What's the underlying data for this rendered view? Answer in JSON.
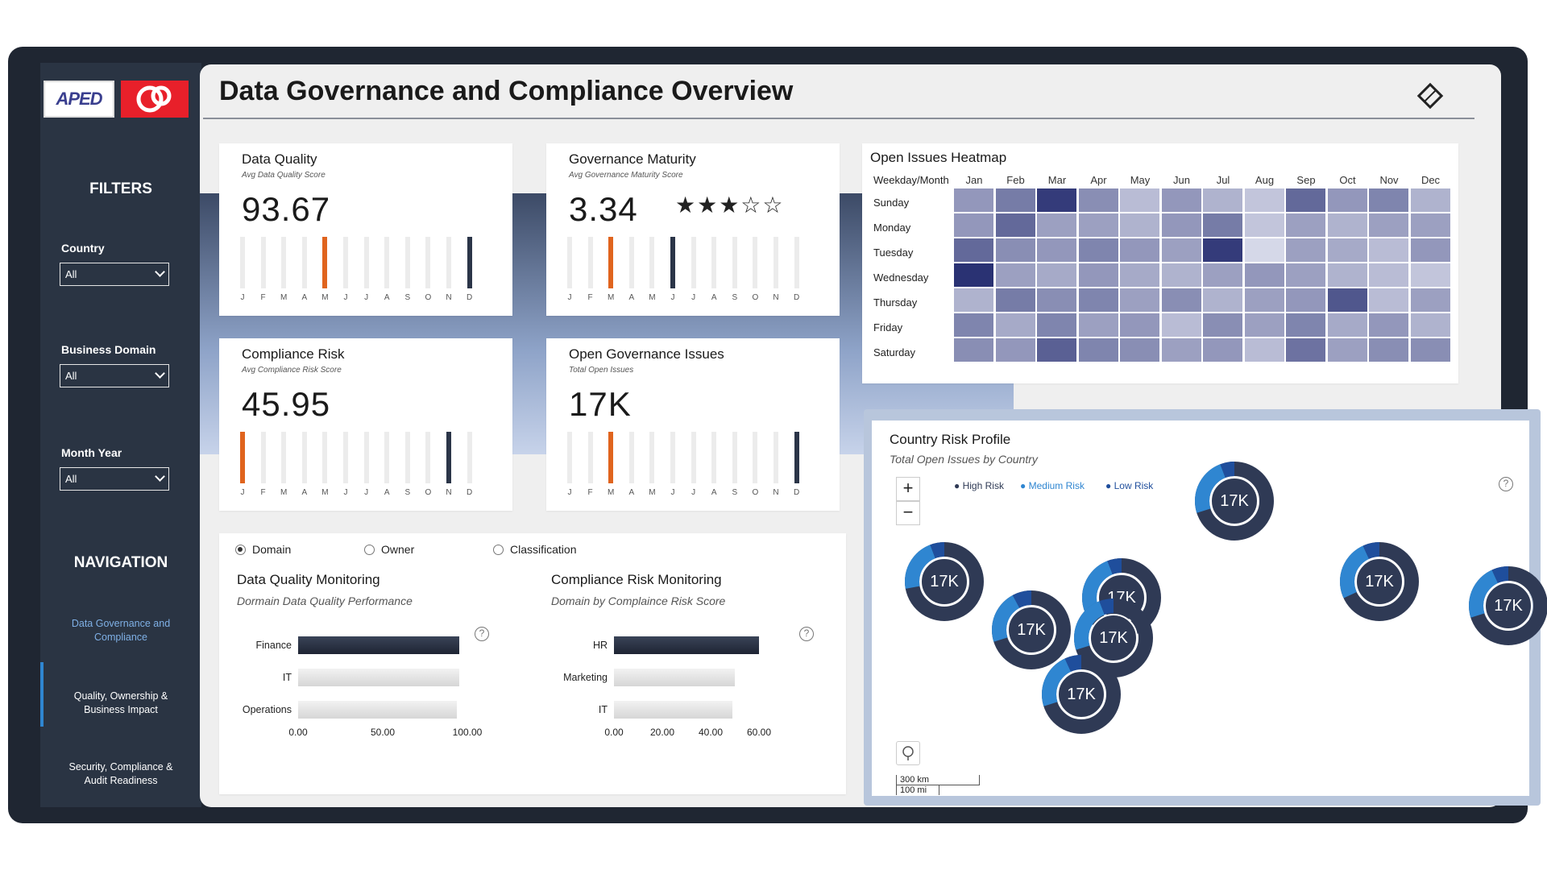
{
  "app": {
    "title": "Data Governance and Compliance Overview",
    "logo_left_text": "APED"
  },
  "sidebar": {
    "filters_heading": "FILTERS",
    "filters": [
      {
        "label": "Country",
        "value": "All"
      },
      {
        "label": "Business Domain",
        "value": "All"
      },
      {
        "label": "Month Year",
        "value": "All"
      }
    ],
    "navigation_heading": "NAVIGATION",
    "nav_items": [
      {
        "label_line1": "Data Governance and",
        "label_line2": "Compliance",
        "active": true
      },
      {
        "label_line1": "Quality, Ownership &",
        "label_line2": "Business Impact",
        "active": false
      },
      {
        "label_line1": "Security, Compliance &",
        "label_line2": "Audit Readiness",
        "active": false
      }
    ]
  },
  "colors": {
    "accent_orange": "#e0641e",
    "accent_navy": "#2b3548",
    "slot_gray": "#ececec",
    "high_risk": "#2f3a55",
    "medium_risk": "#2f86d1",
    "low_risk": "#1f4e9c"
  },
  "kpis": [
    {
      "title": "Data Quality",
      "subtitle": "Avg Data Quality Score",
      "value": "93.67",
      "months": [
        "J",
        "F",
        "M",
        "A",
        "M",
        "J",
        "J",
        "A",
        "S",
        "O",
        "N",
        "D"
      ],
      "highlights": {
        "orange": 4,
        "navy": 11
      }
    },
    {
      "title": "Governance Maturity",
      "subtitle": "Avg Governance Maturity Score",
      "value": "3.34",
      "stars": "★★★☆☆",
      "months": [
        "J",
        "F",
        "M",
        "A",
        "M",
        "J",
        "J",
        "A",
        "S",
        "O",
        "N",
        "D"
      ],
      "highlights": {
        "orange": 2,
        "navy": 5
      }
    },
    {
      "title": "Compliance Risk",
      "subtitle": "Avg Compliance Risk Score",
      "value": "45.95",
      "months": [
        "J",
        "F",
        "M",
        "A",
        "M",
        "J",
        "J",
        "A",
        "S",
        "O",
        "N",
        "D"
      ],
      "highlights": {
        "orange": 0,
        "navy": 10
      }
    },
    {
      "title": "Open Governance Issues",
      "subtitle": "Total Open Issues",
      "value": "17K",
      "months": [
        "J",
        "F",
        "M",
        "A",
        "M",
        "J",
        "J",
        "A",
        "S",
        "O",
        "N",
        "D"
      ],
      "highlights": {
        "orange": 2,
        "navy": 11
      }
    }
  ],
  "heatmap": {
    "title": "Open Issues Heatmap",
    "corner_label": "Weekday/Month",
    "months": [
      "Jan",
      "Feb",
      "Mar",
      "Apr",
      "May",
      "Jun",
      "Jul",
      "Aug",
      "Sep",
      "Oct",
      "Nov",
      "Dec"
    ],
    "weekdays": [
      "Sunday",
      "Monday",
      "Tuesday",
      "Wednesday",
      "Thursday",
      "Friday",
      "Saturday"
    ],
    "intensity": [
      [
        0.45,
        0.6,
        0.95,
        0.5,
        0.25,
        0.45,
        0.3,
        0.2,
        0.7,
        0.45,
        0.55,
        0.3
      ],
      [
        0.45,
        0.7,
        0.4,
        0.4,
        0.3,
        0.45,
        0.6,
        0.2,
        0.4,
        0.3,
        0.4,
        0.4
      ],
      [
        0.7,
        0.5,
        0.45,
        0.55,
        0.45,
        0.4,
        0.95,
        0.1,
        0.4,
        0.35,
        0.25,
        0.45
      ],
      [
        1.0,
        0.4,
        0.35,
        0.45,
        0.35,
        0.3,
        0.4,
        0.45,
        0.4,
        0.3,
        0.25,
        0.2
      ],
      [
        0.3,
        0.6,
        0.5,
        0.55,
        0.4,
        0.5,
        0.3,
        0.4,
        0.45,
        0.8,
        0.25,
        0.4
      ],
      [
        0.55,
        0.35,
        0.55,
        0.4,
        0.45,
        0.25,
        0.5,
        0.4,
        0.55,
        0.35,
        0.45,
        0.3
      ],
      [
        0.5,
        0.45,
        0.75,
        0.55,
        0.5,
        0.4,
        0.45,
        0.25,
        0.65,
        0.4,
        0.5,
        0.5
      ]
    ]
  },
  "monitoring": {
    "radios": [
      {
        "label": "Domain",
        "selected": true
      },
      {
        "label": "Owner",
        "selected": false
      },
      {
        "label": "Classification",
        "selected": false
      }
    ],
    "quality": {
      "title": "Data Quality Monitoring",
      "subtitle": "Dormain Data Quality Performance",
      "categories": [
        "Finance",
        "IT",
        "Operations"
      ],
      "values": [
        95,
        95,
        94
      ],
      "axis_max": 100,
      "ticks": [
        "0.00",
        "50.00",
        "100.00"
      ]
    },
    "risk": {
      "title": "Compliance Risk Monitoring",
      "subtitle": "Domain by Complaince Risk Score",
      "categories": [
        "HR",
        "Marketing",
        "IT"
      ],
      "values": [
        60,
        50,
        49
      ],
      "axis_max": 70,
      "ticks": [
        "0.00",
        "20.00",
        "40.00",
        "60.00"
      ]
    }
  },
  "map": {
    "title": "Country Risk Profile",
    "subtitle": "Total Open Issues by Country",
    "legend": [
      "High Risk",
      "Medium Risk",
      "Low Risk"
    ],
    "zoom_in": "+",
    "zoom_out": "−",
    "scale_km": "300 km",
    "scale_mi": "100 mi",
    "bubbles": [
      {
        "label": "17K",
        "high": 0.72,
        "medium": 0.22,
        "low": 0.06
      },
      {
        "label": "17K",
        "high": 0.7,
        "medium": 0.24,
        "low": 0.06
      },
      {
        "label": "17K",
        "high": 0.68,
        "medium": 0.25,
        "low": 0.07
      },
      {
        "label": "17K",
        "high": 0.7,
        "medium": 0.23,
        "low": 0.07
      },
      {
        "label": "17K",
        "high": 0.7,
        "medium": 0.22,
        "low": 0.08
      },
      {
        "label": "17K",
        "high": 0.68,
        "medium": 0.26,
        "low": 0.06
      },
      {
        "label": "17K",
        "high": 0.7,
        "medium": 0.24,
        "low": 0.06
      },
      {
        "label": "17K",
        "high": 0.7,
        "medium": 0.23,
        "low": 0.07
      }
    ]
  }
}
